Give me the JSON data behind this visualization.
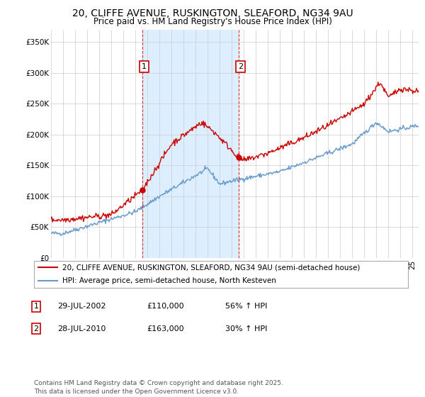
{
  "title": "20, CLIFFE AVENUE, RUSKINGTON, SLEAFORD, NG34 9AU",
  "subtitle": "Price paid vs. HM Land Registry's House Price Index (HPI)",
  "ylim": [
    0,
    370000
  ],
  "yticks": [
    0,
    50000,
    100000,
    150000,
    200000,
    250000,
    300000,
    350000
  ],
  "ytick_labels": [
    "£0",
    "£50K",
    "£100K",
    "£150K",
    "£200K",
    "£250K",
    "£300K",
    "£350K"
  ],
  "xlim_start": 1995.0,
  "xlim_end": 2025.5,
  "sale1_date": 2002.57,
  "sale1_price": 110000,
  "sale2_date": 2010.57,
  "sale2_price": 163000,
  "red_line_color": "#cc0000",
  "blue_line_color": "#6699cc",
  "vline_color": "#cc0000",
  "shade_color": "#ddeeff",
  "legend_red_label": "20, CLIFFE AVENUE, RUSKINGTON, SLEAFORD, NG34 9AU (semi-detached house)",
  "legend_blue_label": "HPI: Average price, semi-detached house, North Kesteven",
  "table_row1": [
    "1",
    "29-JUL-2002",
    "£110,000",
    "56% ↑ HPI"
  ],
  "table_row2": [
    "2",
    "28-JUL-2010",
    "£163,000",
    "30% ↑ HPI"
  ],
  "footer": "Contains HM Land Registry data © Crown copyright and database right 2025.\nThis data is licensed under the Open Government Licence v3.0.",
  "title_fontsize": 10,
  "subtitle_fontsize": 8.5,
  "tick_fontsize": 7.5,
  "legend_fontsize": 7.5,
  "table_fontsize": 8,
  "footer_fontsize": 6.5
}
